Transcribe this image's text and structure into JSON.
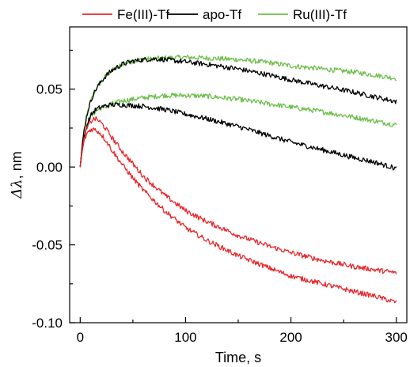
{
  "chart_data": {
    "type": "line",
    "title": "",
    "xlabel": "Time, s",
    "ylabel": {
      "symbol": "Δλ",
      "unit": ", nm"
    },
    "xlim": [
      -10,
      310
    ],
    "ylim": [
      -0.1,
      0.09
    ],
    "xticks": [
      {
        "value": 0,
        "label": "0"
      },
      {
        "value": 100,
        "label": "100"
      },
      {
        "value": 200,
        "label": "200"
      },
      {
        "value": 300,
        "label": "300"
      }
    ],
    "yticks": [
      {
        "value": -0.1,
        "label": "-0.10"
      },
      {
        "value": -0.05,
        "label": "-0.05"
      },
      {
        "value": 0.0,
        "label": "0.00"
      },
      {
        "value": 0.05,
        "label": "0.05"
      }
    ],
    "minor_x_step": 50,
    "minor_y_step": 0.025,
    "grid": false,
    "legend_position": "top",
    "series": [
      {
        "name": "Fe(III)-Tf",
        "color": "#e8262a",
        "x": [
          0,
          2,
          4,
          6,
          8,
          10,
          12,
          14,
          16,
          18,
          20,
          25,
          30,
          40,
          50,
          60,
          80,
          100,
          120,
          150,
          180,
          200,
          230,
          260,
          280,
          300
        ],
        "y": [
          0.0,
          0.012,
          0.019,
          0.024,
          0.027,
          0.029,
          0.0305,
          0.031,
          0.0305,
          0.0295,
          0.0283,
          0.024,
          0.019,
          0.01,
          0.002,
          -0.006,
          -0.018,
          -0.028,
          -0.035,
          -0.044,
          -0.051,
          -0.055,
          -0.06,
          -0.064,
          -0.066,
          -0.068
        ]
      },
      {
        "name": "Fe(III)-Tf",
        "color": "#e8262a",
        "x": [
          0,
          2,
          4,
          6,
          8,
          10,
          12,
          14,
          16,
          18,
          20,
          25,
          30,
          40,
          50,
          60,
          80,
          100,
          120,
          150,
          180,
          200,
          230,
          260,
          280,
          300
        ],
        "y": [
          0.0,
          0.011,
          0.017,
          0.021,
          0.023,
          0.024,
          0.0243,
          0.024,
          0.0232,
          0.0222,
          0.021,
          0.0165,
          0.011,
          0.0015,
          -0.007,
          -0.015,
          -0.028,
          -0.039,
          -0.047,
          -0.057,
          -0.065,
          -0.07,
          -0.075,
          -0.08,
          -0.083,
          -0.087
        ]
      },
      {
        "name": "apo-Tf",
        "color": "#000000",
        "x": [
          0,
          2,
          4,
          6,
          8,
          10,
          12,
          15,
          20,
          25,
          30,
          40,
          50,
          60,
          70,
          80,
          100,
          120,
          150,
          180,
          200,
          230,
          260,
          280,
          300
        ],
        "y": [
          0.0,
          0.015,
          0.025,
          0.032,
          0.038,
          0.042,
          0.046,
          0.05,
          0.055,
          0.059,
          0.062,
          0.066,
          0.068,
          0.069,
          0.0695,
          0.069,
          0.0675,
          0.066,
          0.063,
          0.059,
          0.056,
          0.052,
          0.048,
          0.045,
          0.042
        ]
      },
      {
        "name": "apo-Tf",
        "color": "#000000",
        "x": [
          0,
          2,
          4,
          6,
          8,
          10,
          12,
          15,
          20,
          25,
          30,
          40,
          50,
          60,
          80,
          100,
          120,
          150,
          180,
          200,
          230,
          260,
          280,
          300
        ],
        "y": [
          0.0,
          0.012,
          0.02,
          0.026,
          0.03,
          0.033,
          0.035,
          0.037,
          0.0385,
          0.0395,
          0.04,
          0.04,
          0.0395,
          0.039,
          0.037,
          0.034,
          0.031,
          0.026,
          0.02,
          0.016,
          0.011,
          0.006,
          0.003,
          -0.001
        ]
      },
      {
        "name": "Ru(III)-Tf",
        "color": "#6cbf4a",
        "x": [
          0,
          2,
          4,
          6,
          8,
          10,
          12,
          15,
          20,
          25,
          30,
          40,
          50,
          60,
          80,
          100,
          120,
          150,
          180,
          200,
          230,
          260,
          280,
          300
        ],
        "y": [
          0.0,
          0.015,
          0.025,
          0.032,
          0.038,
          0.042,
          0.046,
          0.05,
          0.055,
          0.059,
          0.062,
          0.066,
          0.068,
          0.069,
          0.07,
          0.0705,
          0.07,
          0.069,
          0.067,
          0.065,
          0.063,
          0.061,
          0.059,
          0.057
        ]
      },
      {
        "name": "Ru(III)-Tf",
        "color": "#6cbf4a",
        "x": [
          0,
          2,
          4,
          6,
          8,
          10,
          12,
          15,
          20,
          25,
          30,
          40,
          50,
          60,
          80,
          100,
          120,
          150,
          180,
          200,
          230,
          260,
          280,
          300
        ],
        "y": [
          0.0,
          0.011,
          0.019,
          0.025,
          0.029,
          0.032,
          0.034,
          0.036,
          0.038,
          0.039,
          0.0405,
          0.0425,
          0.0435,
          0.0445,
          0.046,
          0.046,
          0.0455,
          0.0435,
          0.0405,
          0.0385,
          0.0355,
          0.032,
          0.0295,
          0.027
        ]
      }
    ],
    "legend": [
      {
        "label": "Fe(III)-Tf",
        "color": "#e8262a"
      },
      {
        "label": "apo-Tf",
        "color": "#000000"
      },
      {
        "label": "Ru(III)-Tf",
        "color": "#6cbf4a"
      }
    ]
  }
}
